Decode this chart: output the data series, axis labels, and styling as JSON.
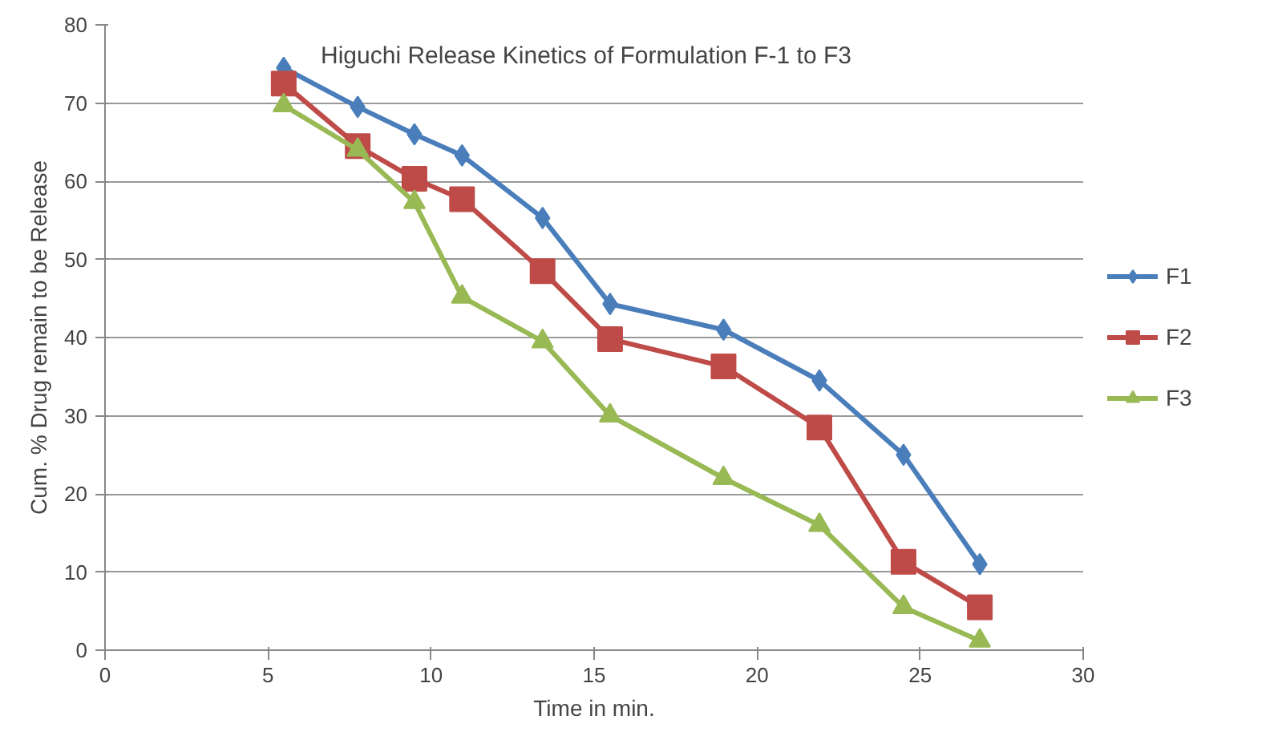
{
  "chart_data": {
    "type": "line",
    "title": "Higuchi Release Kinetics of Formulation F-1 to F3",
    "xlabel": "Time in min.",
    "ylabel": "Cum. % Drug remain to be Release",
    "x": [
      5.48,
      7.75,
      9.49,
      10.95,
      13.42,
      15.49,
      18.97,
      21.91,
      24.49,
      26.83
    ],
    "series": [
      {
        "name": "F1",
        "color": "#4a7ebb",
        "marker": "diamond",
        "values": [
          74.5,
          69.5,
          66,
          63.3,
          55.3,
          44.3,
          41,
          34.5,
          25,
          11
        ]
      },
      {
        "name": "F2",
        "color": "#be4b48",
        "marker": "square",
        "values": [
          72.5,
          64.5,
          60.3,
          57.7,
          48.5,
          39.8,
          36.3,
          28.5,
          11.3,
          5.5
        ]
      },
      {
        "name": "F3",
        "color": "#98b954",
        "marker": "triangle",
        "values": [
          69.7,
          64,
          57.3,
          45.2,
          39.5,
          30,
          22,
          16,
          5.5,
          1.2
        ]
      }
    ],
    "xlim": [
      0,
      30
    ],
    "xticks": [
      0,
      5,
      10,
      15,
      20,
      25,
      30
    ],
    "ylim": [
      0,
      80
    ],
    "yticks": [
      0,
      10,
      20,
      30,
      40,
      50,
      60,
      70,
      80
    ],
    "grid": "y",
    "legend": "right",
    "line_style": "solid"
  }
}
